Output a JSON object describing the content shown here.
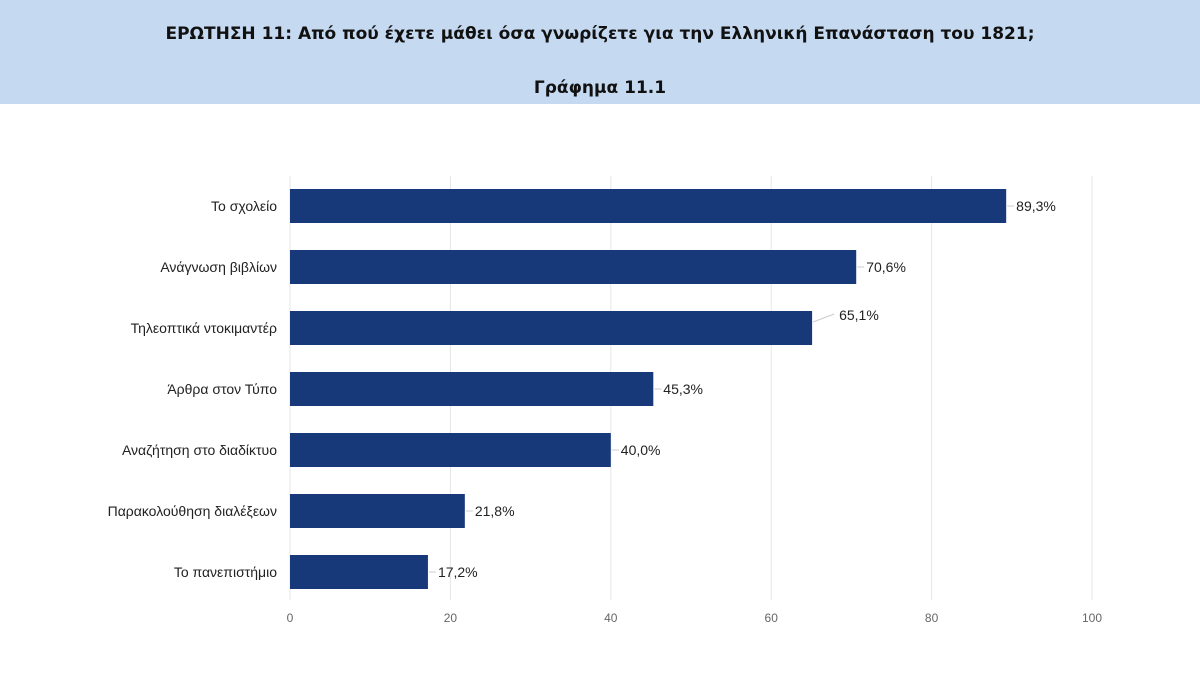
{
  "header": {
    "title": "ΕΡΩΤΗΣΗ 11: Από πού έχετε μάθει όσα γνωρίζετε για την Ελληνική Επανάσταση του 1821;",
    "subtitle": "Γράφημα 11.1",
    "band_color": "#c5d9f1"
  },
  "chart_data": {
    "type": "bar",
    "orientation": "horizontal",
    "categories": [
      "Το σχολείο",
      "Ανάγνωση βιβλίων",
      "Τηλεοπτικά ντοκιμαντέρ",
      "Άρθρα στον Τύπο",
      "Αναζήτηση στο διαδίκτυο",
      "Παρακολούθηση διαλέξεων",
      "Το πανεπιστήμιο"
    ],
    "values": [
      89.3,
      70.6,
      65.1,
      45.3,
      40.0,
      21.8,
      17.2
    ],
    "value_labels": [
      "89,3%",
      "70,6%",
      "65,1%",
      "45,3%",
      "40,0%",
      "21,8%",
      "17,2%"
    ],
    "xlim": [
      0,
      100
    ],
    "xticks": [
      0,
      20,
      40,
      60,
      80,
      100
    ],
    "xtick_labels": [
      "0",
      "20",
      "40",
      "60",
      "80",
      "100"
    ],
    "grid": "vertical",
    "bar_color": "#17397a",
    "grid_color": "#e6e6e6"
  }
}
